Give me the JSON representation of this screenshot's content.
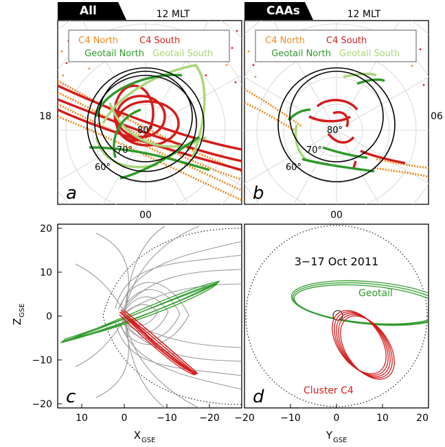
{
  "chart_data": [
    {
      "panel": "a",
      "type": "scatter",
      "title": "All",
      "projection": "polar, magnetic local time vs latitude",
      "mlt_labels": {
        "top": "12 MLT",
        "left": "18",
        "bottom": "00"
      },
      "latitude_labels": [
        "60°",
        "70°",
        "80°"
      ],
      "legend": [
        "C4 North",
        "C4 South",
        "Geotail North",
        "Geotail South"
      ],
      "legend_placement": "top"
    },
    {
      "panel": "b",
      "type": "scatter",
      "title": "CAAs",
      "projection": "polar, magnetic local time vs latitude",
      "mlt_labels": {
        "top": "12 MLT",
        "right": "06",
        "bottom": "00"
      },
      "latitude_labels": [
        "60°",
        "70°",
        "80°"
      ],
      "legend": [
        "C4 North",
        "C4 South",
        "Geotail North",
        "Geotail South"
      ],
      "legend_placement": "top"
    },
    {
      "panel": "c",
      "type": "line",
      "xlabel_main": "X",
      "xlabel_sub": "GSE",
      "ylabel_main": "Z",
      "ylabel_sub": "GSE",
      "xlim": [
        15,
        -22
      ],
      "ylim": [
        -21,
        21
      ],
      "xticks": [
        "10",
        "0",
        "−10",
        "−20"
      ],
      "yticks": [
        "20",
        "10",
        "0",
        "−10",
        "−20"
      ],
      "series": [
        {
          "orbit": "geotail",
          "color": "#2e9a2a"
        },
        {
          "orbit": "cluster",
          "color": "#d41c1c"
        },
        {
          "orbit": "field lines",
          "color": "#9a9a9a"
        }
      ]
    },
    {
      "panel": "d",
      "type": "line",
      "annotation": "3−17 Oct 2011",
      "xlabel_main": "Y",
      "xlabel_sub": "GSE",
      "xlim": [
        -20,
        20
      ],
      "ylim": [
        -21,
        21
      ],
      "xticks": [
        "−20",
        "−10",
        "0",
        "10",
        "20"
      ],
      "series": [
        {
          "name": "Geotail",
          "color": "#2e9a2a"
        },
        {
          "name": "Cluster C4",
          "color": "#d41c1c"
        }
      ]
    }
  ],
  "legend_colors": {
    "c4_north": "#f08a1c",
    "c4_south": "#d41c1c",
    "geotail_north": "#2e9a2a",
    "geotail_south": "#a8d878"
  },
  "panel_letters": [
    "a",
    "b",
    "c",
    "d"
  ]
}
